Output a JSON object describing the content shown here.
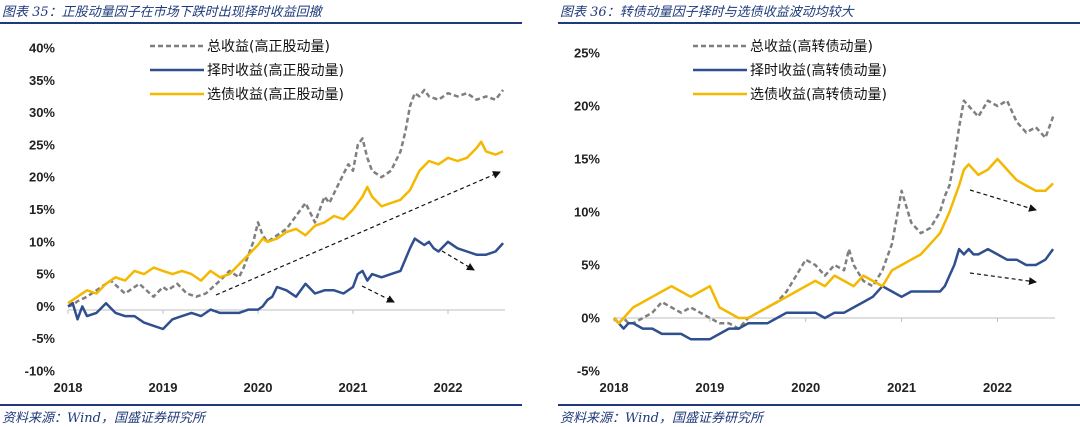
{
  "panels": [
    {
      "title": "图表 35：正股动量因子在市场下跌时出现择时收益回撤",
      "source": "资料来源：Wind，国盛证券研究所"
    },
    {
      "title": "图表 36：转债动量因子择时与选债收益波动均较大",
      "source": "资料来源：Wind，国盛证券研究所"
    }
  ],
  "colors": {
    "total": "#7f7f7f",
    "timing": "#2f4f8f",
    "selection": "#f5b800",
    "rule": "#1f3a7a"
  },
  "chart_data": [
    {
      "type": "line",
      "title": "",
      "xlabel": "",
      "ylabel": "",
      "xlim": [
        2018,
        2022.6
      ],
      "ylim": [
        -10,
        40
      ],
      "yticks": [
        -10,
        -5,
        0,
        5,
        10,
        15,
        20,
        25,
        30,
        35,
        40
      ],
      "ytick_labels": [
        "-10%",
        "-5%",
        "0%",
        "5%",
        "10%",
        "15%",
        "20%",
        "25%",
        "30%",
        "35%",
        "40%"
      ],
      "xticks": [
        2018,
        2019,
        2020,
        2021,
        2022
      ],
      "xtick_labels": [
        "2018",
        "2019",
        "2020",
        "2021",
        "2022"
      ],
      "legend_position": "top-center",
      "series": [
        {
          "name": "总收益(高正股动量)",
          "style": "dashed",
          "color": "#7f7f7f",
          "x": [
            2018.0,
            2018.05,
            2018.1,
            2018.2,
            2018.3,
            2018.45,
            2018.6,
            2018.75,
            2018.9,
            2019.0,
            2019.05,
            2019.15,
            2019.25,
            2019.35,
            2019.45,
            2019.6,
            2019.7,
            2019.8,
            2019.85,
            2019.9,
            2019.95,
            2020.0,
            2020.05,
            2020.1,
            2020.15,
            2020.2,
            2020.3,
            2020.4,
            2020.5,
            2020.6,
            2020.7,
            2020.75,
            2020.85,
            2020.95,
            2021.0,
            2021.05,
            2021.1,
            2021.15,
            2021.2,
            2021.3,
            2021.4,
            2021.5,
            2021.55,
            2021.6,
            2021.65,
            2021.7,
            2021.75,
            2021.8,
            2021.9,
            2022.0,
            2022.1,
            2022.2,
            2022.3,
            2022.4,
            2022.5,
            2022.58
          ],
          "values": [
            0.0,
            0.2,
            0.8,
            1.5,
            2.5,
            4.0,
            2.0,
            3.5,
            1.5,
            3.0,
            2.5,
            3.5,
            2.0,
            1.5,
            2.0,
            4.0,
            5.5,
            4.5,
            6.0,
            8.0,
            10.0,
            13.0,
            11.0,
            10.0,
            10.5,
            11.0,
            12.0,
            14.0,
            16.0,
            13.0,
            17.0,
            16.0,
            19.0,
            22.0,
            21.0,
            25.0,
            26.0,
            23.0,
            21.0,
            20.0,
            21.0,
            24.0,
            27.0,
            31.0,
            33.0,
            32.5,
            33.5,
            32.5,
            32.0,
            33.0,
            32.5,
            33.0,
            32.0,
            32.5,
            32.0,
            33.5
          ]
        },
        {
          "name": "择时收益(高正股动量)",
          "style": "solid",
          "color": "#2f4f8f",
          "x": [
            2018.0,
            2018.05,
            2018.1,
            2018.15,
            2018.2,
            2018.3,
            2018.4,
            2018.5,
            2018.6,
            2018.7,
            2018.8,
            2018.9,
            2019.0,
            2019.1,
            2019.2,
            2019.3,
            2019.4,
            2019.5,
            2019.6,
            2019.7,
            2019.8,
            2019.9,
            2020.0,
            2020.05,
            2020.1,
            2020.15,
            2020.2,
            2020.3,
            2020.4,
            2020.5,
            2020.6,
            2020.7,
            2020.8,
            2020.9,
            2021.0,
            2021.05,
            2021.1,
            2021.15,
            2021.2,
            2021.3,
            2021.4,
            2021.5,
            2021.6,
            2021.65,
            2021.7,
            2021.75,
            2021.8,
            2021.85,
            2021.9,
            2022.0,
            2022.1,
            2022.2,
            2022.3,
            2022.4,
            2022.5,
            2022.58
          ],
          "values": [
            0.0,
            0.5,
            -2.0,
            0.0,
            -1.5,
            -1.0,
            0.5,
            -1.0,
            -1.5,
            -1.5,
            -2.5,
            -3.0,
            -3.5,
            -2.0,
            -1.5,
            -1.0,
            -1.5,
            -0.5,
            -1.0,
            -1.0,
            -1.0,
            -0.5,
            -0.5,
            0.0,
            1.0,
            1.5,
            3.0,
            2.5,
            1.5,
            3.5,
            2.0,
            2.5,
            2.5,
            2.0,
            3.0,
            5.0,
            5.5,
            4.0,
            5.0,
            4.5,
            5.0,
            5.5,
            9.0,
            10.5,
            10.0,
            9.5,
            10.0,
            9.0,
            8.5,
            10.0,
            9.0,
            8.5,
            8.0,
            8.0,
            8.5,
            9.8
          ]
        },
        {
          "name": "选债收益(高正股动量)",
          "style": "solid",
          "color": "#f5b800",
          "x": [
            2018.0,
            2018.05,
            2018.1,
            2018.2,
            2018.3,
            2018.4,
            2018.5,
            2018.6,
            2018.7,
            2018.8,
            2018.9,
            2019.0,
            2019.1,
            2019.2,
            2019.3,
            2019.4,
            2019.5,
            2019.6,
            2019.7,
            2019.8,
            2019.9,
            2020.0,
            2020.05,
            2020.1,
            2020.2,
            2020.3,
            2020.4,
            2020.5,
            2020.6,
            2020.7,
            2020.8,
            2020.9,
            2021.0,
            2021.1,
            2021.15,
            2021.2,
            2021.3,
            2021.4,
            2021.5,
            2021.6,
            2021.7,
            2021.8,
            2021.9,
            2022.0,
            2022.1,
            2022.2,
            2022.3,
            2022.35,
            2022.4,
            2022.5,
            2022.58
          ],
          "values": [
            0.5,
            1.0,
            1.5,
            2.5,
            2.0,
            3.5,
            4.5,
            4.0,
            5.5,
            5.0,
            6.0,
            5.5,
            5.0,
            5.5,
            5.0,
            4.0,
            5.5,
            4.5,
            5.0,
            6.5,
            8.0,
            9.5,
            10.5,
            10.0,
            10.5,
            11.5,
            12.0,
            11.0,
            12.5,
            13.0,
            14.0,
            13.5,
            15.0,
            17.0,
            18.5,
            17.0,
            15.5,
            16.0,
            16.5,
            18.0,
            21.0,
            22.5,
            22.0,
            23.0,
            22.5,
            23.0,
            24.5,
            25.5,
            24.0,
            23.5,
            24.0
          ]
        }
      ]
    },
    {
      "type": "line",
      "title": "",
      "xlabel": "",
      "ylabel": "",
      "xlim": [
        2018,
        2022.6
      ],
      "ylim": [
        -5,
        25
      ],
      "yticks": [
        -5,
        0,
        5,
        10,
        15,
        20,
        25
      ],
      "ytick_labels": [
        "-5%",
        "0%",
        "5%",
        "10%",
        "15%",
        "20%",
        "25%"
      ],
      "xticks": [
        2018,
        2019,
        2020,
        2021,
        2022
      ],
      "xtick_labels": [
        "2018",
        "2019",
        "2020",
        "2021",
        "2022"
      ],
      "legend_position": "top-center",
      "series": [
        {
          "name": "总收益(高转债动量)",
          "style": "dashed",
          "color": "#7f7f7f",
          "x": [
            2018.0,
            2018.05,
            2018.1,
            2018.15,
            2018.2,
            2018.3,
            2018.4,
            2018.5,
            2018.6,
            2018.7,
            2018.8,
            2018.9,
            2019.0,
            2019.1,
            2019.2,
            2019.3,
            2019.4,
            2019.5,
            2019.6,
            2019.7,
            2019.8,
            2019.9,
            2020.0,
            2020.1,
            2020.2,
            2020.3,
            2020.4,
            2020.45,
            2020.5,
            2020.6,
            2020.7,
            2020.8,
            2020.9,
            2021.0,
            2021.05,
            2021.1,
            2021.2,
            2021.3,
            2021.4,
            2021.45,
            2021.5,
            2021.55,
            2021.6,
            2021.65,
            2021.7,
            2021.75,
            2021.8,
            2021.9,
            2022.0,
            2022.1,
            2022.2,
            2022.3,
            2022.4,
            2022.5,
            2022.58
          ],
          "values": [
            0.0,
            -0.5,
            0.0,
            -0.5,
            -0.5,
            0.0,
            0.5,
            1.5,
            1.0,
            0.5,
            1.0,
            0.5,
            0.0,
            -0.5,
            -0.5,
            -1.0,
            0.0,
            0.5,
            1.0,
            1.5,
            2.5,
            4.0,
            5.5,
            5.0,
            4.0,
            5.0,
            4.5,
            6.5,
            5.0,
            3.5,
            3.0,
            4.5,
            7.0,
            12.0,
            10.5,
            9.0,
            8.0,
            8.5,
            10.0,
            11.5,
            12.5,
            15.0,
            18.0,
            20.5,
            20.0,
            19.5,
            19.0,
            20.5,
            20.0,
            20.5,
            18.5,
            17.5,
            18.0,
            17.0,
            19.0
          ]
        },
        {
          "name": "择时收益(高转债动量)",
          "style": "solid",
          "color": "#2f4f8f",
          "x": [
            2018.0,
            2018.05,
            2018.1,
            2018.15,
            2018.2,
            2018.3,
            2018.4,
            2018.5,
            2018.6,
            2018.7,
            2018.8,
            2018.9,
            2019.0,
            2019.1,
            2019.2,
            2019.3,
            2019.4,
            2019.5,
            2019.6,
            2019.7,
            2019.8,
            2019.9,
            2020.0,
            2020.1,
            2020.2,
            2020.3,
            2020.4,
            2020.5,
            2020.6,
            2020.7,
            2020.8,
            2020.9,
            2021.0,
            2021.1,
            2021.2,
            2021.3,
            2021.4,
            2021.45,
            2021.5,
            2021.55,
            2021.6,
            2021.65,
            2021.7,
            2021.75,
            2021.8,
            2021.9,
            2022.0,
            2022.1,
            2022.2,
            2022.3,
            2022.4,
            2022.5,
            2022.58
          ],
          "values": [
            0.0,
            -0.5,
            -1.0,
            -0.5,
            -0.5,
            -1.0,
            -1.0,
            -1.5,
            -1.5,
            -1.5,
            -2.0,
            -2.0,
            -2.0,
            -1.5,
            -1.0,
            -1.0,
            -0.5,
            -0.5,
            -0.5,
            0.0,
            0.5,
            0.5,
            0.5,
            0.5,
            0.0,
            0.5,
            0.5,
            1.0,
            1.5,
            2.0,
            3.0,
            2.5,
            2.0,
            2.5,
            2.5,
            2.5,
            2.5,
            3.0,
            4.0,
            5.0,
            6.5,
            6.0,
            6.5,
            6.0,
            6.0,
            6.5,
            6.0,
            5.5,
            5.5,
            5.0,
            5.0,
            5.5,
            6.5
          ]
        },
        {
          "name": "选债收益(高转债动量)",
          "style": "solid",
          "color": "#f5b800",
          "x": [
            2018.0,
            2018.05,
            2018.1,
            2018.2,
            2018.3,
            2018.4,
            2018.5,
            2018.6,
            2018.7,
            2018.8,
            2018.9,
            2019.0,
            2019.1,
            2019.2,
            2019.3,
            2019.4,
            2019.5,
            2019.6,
            2019.7,
            2019.8,
            2019.9,
            2020.0,
            2020.1,
            2020.2,
            2020.3,
            2020.4,
            2020.5,
            2020.6,
            2020.7,
            2020.8,
            2020.9,
            2021.0,
            2021.1,
            2021.2,
            2021.3,
            2021.4,
            2021.5,
            2021.6,
            2021.65,
            2021.7,
            2021.8,
            2021.9,
            2022.0,
            2022.1,
            2022.2,
            2022.3,
            2022.4,
            2022.5,
            2022.58
          ],
          "values": [
            0.0,
            -0.5,
            0.0,
            1.0,
            1.5,
            2.0,
            2.5,
            3.0,
            2.5,
            2.0,
            2.5,
            3.0,
            1.0,
            0.5,
            0.0,
            0.0,
            0.5,
            1.0,
            1.5,
            2.0,
            2.5,
            3.0,
            3.5,
            3.0,
            4.0,
            3.5,
            3.0,
            4.0,
            3.5,
            3.0,
            4.5,
            5.0,
            5.5,
            6.0,
            7.0,
            8.0,
            10.0,
            12.5,
            14.0,
            14.5,
            13.5,
            14.0,
            15.0,
            14.0,
            13.0,
            12.5,
            12.0,
            12.0,
            12.7
          ]
        }
      ]
    }
  ]
}
